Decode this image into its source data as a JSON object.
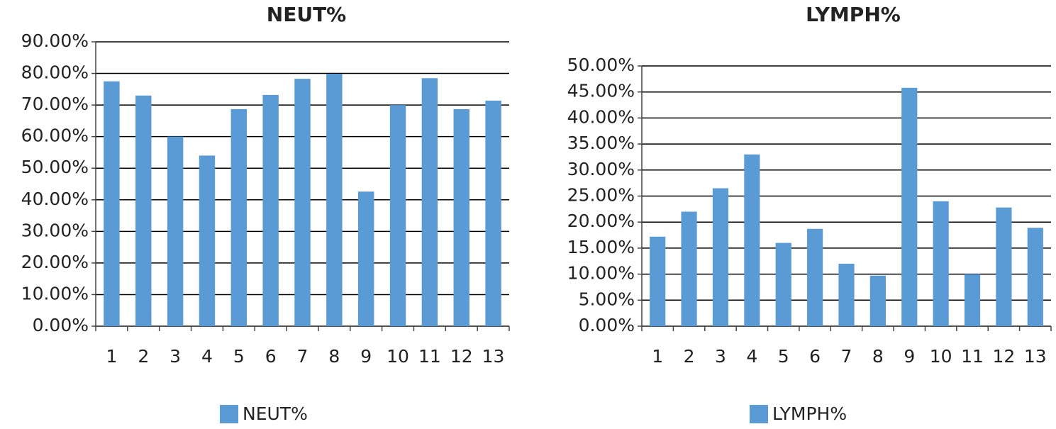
{
  "chart_data": [
    {
      "type": "bar",
      "title": "NEUT%",
      "categories": [
        "1",
        "2",
        "3",
        "4",
        "5",
        "6",
        "7",
        "8",
        "9",
        "10",
        "11",
        "12",
        "13"
      ],
      "series": [
        {
          "name": "NEUT%",
          "color": "#5b9bd5",
          "values": [
            77.5,
            73,
            60,
            54,
            68.7,
            73.2,
            78.3,
            79.9,
            42.6,
            70,
            78.5,
            68.7,
            71.4
          ]
        }
      ],
      "ylim": [
        0,
        90
      ],
      "yticks": [
        {
          "value": 0,
          "label": "0.00%"
        },
        {
          "value": 10,
          "label": "10.00%"
        },
        {
          "value": 20,
          "label": "20.00%"
        },
        {
          "value": 30,
          "label": "30.00%"
        },
        {
          "value": 40,
          "label": "40.00%"
        },
        {
          "value": 50,
          "label": "50.00%"
        },
        {
          "value": 60,
          "label": "60.00%"
        },
        {
          "value": 70,
          "label": "70.00%"
        },
        {
          "value": 80,
          "label": "80.00%"
        },
        {
          "value": 90,
          "label": "90.00%"
        }
      ],
      "grid": true,
      "legend": "bottom"
    },
    {
      "type": "bar",
      "title": "LYMPH%",
      "categories": [
        "1",
        "2",
        "3",
        "4",
        "5",
        "6",
        "7",
        "8",
        "9",
        "10",
        "11",
        "12",
        "13"
      ],
      "series": [
        {
          "name": "LYMPH%",
          "color": "#5b9bd5",
          "values": [
            17.2,
            22,
            26.5,
            33,
            16,
            18.7,
            12,
            9.7,
            45.8,
            24,
            10,
            22.8,
            18.9
          ]
        }
      ],
      "ylim": [
        0,
        50
      ],
      "yticks": [
        {
          "value": 0,
          "label": "0.00%"
        },
        {
          "value": 5,
          "label": "5.00%"
        },
        {
          "value": 10,
          "label": "10.00%"
        },
        {
          "value": 15,
          "label": "15.00%"
        },
        {
          "value": 20,
          "label": "20.00%"
        },
        {
          "value": 25,
          "label": "25.00%"
        },
        {
          "value": 30,
          "label": "30.00%"
        },
        {
          "value": 35,
          "label": "35.00%"
        },
        {
          "value": 40,
          "label": "40.00%"
        },
        {
          "value": 45,
          "label": "45.00%"
        },
        {
          "value": 50,
          "label": "50.00%"
        }
      ],
      "grid": true,
      "legend": "bottom"
    }
  ]
}
